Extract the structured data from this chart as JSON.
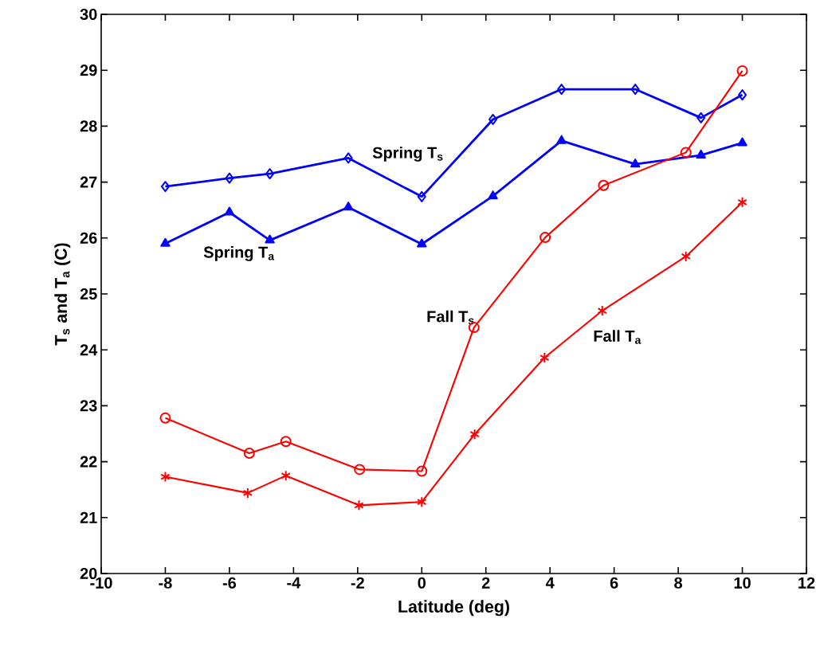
{
  "chart_data": {
    "type": "line",
    "xlabel": "Latitude (deg)",
    "ylabel": "T$_{s}$ and T$_{a}$ (C)",
    "xlim": [
      -10,
      12
    ],
    "xticks": [
      -10,
      -8,
      -6,
      -4,
      -2,
      0,
      2,
      4,
      6,
      8,
      10,
      12
    ],
    "ylim": [
      20,
      30
    ],
    "yticks": [
      20,
      21,
      22,
      23,
      24,
      25,
      26,
      27,
      28,
      29,
      30
    ],
    "series": [
      {
        "name": "Spring T$_{s}$",
        "color": "#0000ff",
        "marker": "diamond",
        "x": [
          -8,
          -6,
          -4.74,
          -2.29,
          0,
          2.22,
          4.36,
          6.66,
          8.71,
          10
        ],
        "values": [
          26.92,
          27.07,
          27.15,
          27.43,
          26.74,
          28.12,
          28.66,
          28.66,
          28.15,
          28.56
        ]
      },
      {
        "name": "Spring T$_{a}$",
        "color": "#0000ff",
        "marker": "triangle",
        "x": [
          -8,
          -6,
          -4.74,
          -2.29,
          0,
          2.22,
          4.36,
          6.66,
          8.71,
          10
        ],
        "values": [
          25.9,
          26.46,
          25.96,
          26.55,
          25.89,
          26.75,
          27.74,
          27.32,
          27.48,
          27.7
        ]
      },
      {
        "name": "Fall T$_{s}$",
        "color": "#ff0000",
        "marker": "circle",
        "x": [
          -8,
          -5.38,
          -4.24,
          -1.94,
          0,
          1.63,
          3.85,
          5.67,
          8.24,
          10
        ],
        "values": [
          22.78,
          22.15,
          22.36,
          21.86,
          21.83,
          24.4,
          26.01,
          26.94,
          27.53,
          28.99
        ]
      },
      {
        "name": "Fall T$_{a}$",
        "color": "#ff0000",
        "marker": "cross",
        "x": [
          -8,
          -5.43,
          -4.24,
          -1.96,
          0,
          1.65,
          3.83,
          5.63,
          8.24,
          10
        ],
        "values": [
          21.73,
          21.44,
          21.75,
          21.22,
          21.28,
          22.49,
          23.86,
          24.7,
          25.67,
          26.64
        ]
      }
    ]
  }
}
